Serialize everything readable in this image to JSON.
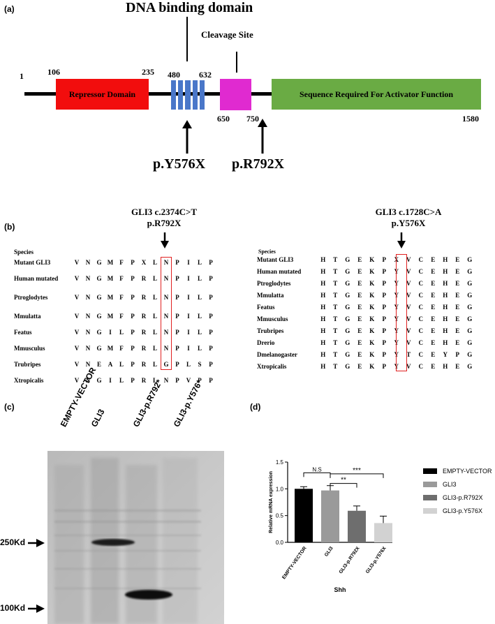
{
  "panel_a": {
    "label": "(a)",
    "dna_binding_title": "DNA binding domain",
    "cleavage_title": "Cleavage Site",
    "positions": {
      "p1": "1",
      "p106": "106",
      "p235": "235",
      "p480": "480",
      "p632": "632",
      "p650": "650",
      "p750": "750",
      "p1580": "1580"
    },
    "repressor_label": "Repressor Domain",
    "activator_label": "Sequence Required For Activator Function",
    "mutation1": "p.Y576X",
    "mutation2": "p.R792X",
    "colors": {
      "repressor": "#f20d0d",
      "dna_binding": "#4a77c9",
      "cleavage": "#e02ad0",
      "activator": "#6aab44"
    }
  },
  "panel_b": {
    "label": "(b)",
    "left": {
      "title1": "GLI3 c.2374C>T",
      "title2": "p.R792X",
      "species_header": "Species",
      "rows": [
        {
          "species": "Mutant GLI3",
          "seq": [
            "V",
            "N",
            "G",
            "M",
            "F",
            "P",
            "X",
            "L",
            "N",
            "P",
            "I",
            "L",
            "P"
          ]
        },
        {
          "species": "Human mutated",
          "seq": [
            "V",
            "N",
            "G",
            "M",
            "F",
            "P",
            "R",
            "L",
            "N",
            "P",
            "I",
            "L",
            "P"
          ]
        },
        {
          "species": "Ptroglodytes",
          "seq": [
            "V",
            "N",
            "G",
            "M",
            "F",
            "P",
            "R",
            "L",
            "N",
            "P",
            "I",
            "L",
            "P"
          ]
        },
        {
          "species": "Mmulatta",
          "seq": [
            "V",
            "N",
            "G",
            "M",
            "F",
            "P",
            "R",
            "L",
            "N",
            "P",
            "I",
            "L",
            "P"
          ]
        },
        {
          "species": "Featus",
          "seq": [
            "V",
            "N",
            "G",
            "I",
            "L",
            "P",
            "R",
            "L",
            "N",
            "P",
            "I",
            "L",
            "P"
          ]
        },
        {
          "species": "Mmusculus",
          "seq": [
            "V",
            "N",
            "G",
            "M",
            "F",
            "P",
            "R",
            "L",
            "N",
            "P",
            "I",
            "L",
            "P"
          ]
        },
        {
          "species": "Trubripes",
          "seq": [
            "V",
            "N",
            "E",
            "A",
            "L",
            "P",
            "R",
            "L",
            "G",
            "P",
            "L",
            "S",
            "P"
          ]
        },
        {
          "species": "Xtropicalis",
          "seq": [
            "V",
            "N",
            "G",
            "I",
            "L",
            "P",
            "R",
            "L",
            "N",
            "P",
            "V",
            "P",
            "P"
          ]
        }
      ]
    },
    "right": {
      "title1": "GLI3 c.1728C>A",
      "title2": "p.Y576X",
      "species_header": "Species",
      "rows": [
        {
          "species": "Mutant GLI3",
          "seq": [
            "H",
            "T",
            "G",
            "E",
            "K",
            "P",
            "X",
            "V",
            "C",
            "E",
            "H",
            "E",
            "G"
          ]
        },
        {
          "species": "Human mutated",
          "seq": [
            "H",
            "T",
            "G",
            "E",
            "K",
            "P",
            "Y",
            "V",
            "C",
            "E",
            "H",
            "E",
            "G"
          ]
        },
        {
          "species": "Ptroglodytes",
          "seq": [
            "H",
            "T",
            "G",
            "E",
            "K",
            "P",
            "Y",
            "V",
            "C",
            "E",
            "H",
            "E",
            "G"
          ]
        },
        {
          "species": "Mmulatta",
          "seq": [
            "H",
            "T",
            "G",
            "E",
            "K",
            "P",
            "Y",
            "V",
            "C",
            "E",
            "H",
            "E",
            "G"
          ]
        },
        {
          "species": "Featus",
          "seq": [
            "H",
            "T",
            "G",
            "E",
            "K",
            "P",
            "Y",
            "V",
            "C",
            "E",
            "H",
            "E",
            "G"
          ]
        },
        {
          "species": "Mmusculus",
          "seq": [
            "H",
            "T",
            "G",
            "E",
            "K",
            "P",
            "Y",
            "V",
            "C",
            "E",
            "H",
            "E",
            "G"
          ]
        },
        {
          "species": "Trubripes",
          "seq": [
            "H",
            "T",
            "G",
            "E",
            "K",
            "P",
            "Y",
            "V",
            "C",
            "E",
            "H",
            "E",
            "G"
          ]
        },
        {
          "species": "Drerio",
          "seq": [
            "H",
            "T",
            "G",
            "E",
            "K",
            "P",
            "Y",
            "V",
            "C",
            "E",
            "H",
            "E",
            "G"
          ]
        },
        {
          "species": "Dmelanogaster",
          "seq": [
            "H",
            "T",
            "G",
            "E",
            "K",
            "P",
            "Y",
            "T",
            "C",
            "E",
            "Y",
            "P",
            "G"
          ]
        },
        {
          "species": "Xtropicalis",
          "seq": [
            "H",
            "T",
            "G",
            "E",
            "K",
            "P",
            "Y",
            "V",
            "C",
            "E",
            "H",
            "E",
            "G"
          ]
        }
      ]
    },
    "highlight_color": "#e02020"
  },
  "panel_c": {
    "label": "(c)",
    "lanes": [
      "EMPTY-VECTOR",
      "GLI3",
      "GLI3-p.R792*",
      "GLI3-p.Y576*"
    ],
    "marker_250": "250Kd",
    "marker_100": "100Kd"
  },
  "panel_d": {
    "label": "(d)",
    "legend": [
      {
        "name": "EMPTY-VECTOR",
        "color": "#000000"
      },
      {
        "name": "GLI3",
        "color": "#9a9a9a"
      },
      {
        "name": "GLI3-p.R792X",
        "color": "#6e6e6e"
      },
      {
        "name": "GLI3-p.Y576X",
        "color": "#d2d2d2"
      }
    ],
    "significance": [
      "N.S",
      "**",
      "***"
    ]
  },
  "chart_data": {
    "type": "bar",
    "categories": [
      "EMPTY-VECTOR",
      "GLI3",
      "GLI3-p.R792X",
      "GLI3-p.Y576X"
    ],
    "values": [
      1.0,
      0.97,
      0.59,
      0.36
    ],
    "errors": [
      0.04,
      0.09,
      0.09,
      0.13
    ],
    "colors": [
      "#000000",
      "#9a9a9a",
      "#6e6e6e",
      "#d2d2d2"
    ],
    "ylabel": "Relative mRNA expression",
    "xlabel": "Shh",
    "ylim": [
      0,
      1.5
    ],
    "yticks": [
      "0.0",
      "0.5",
      "1.0",
      "1.5"
    ],
    "legend_position": "right"
  }
}
